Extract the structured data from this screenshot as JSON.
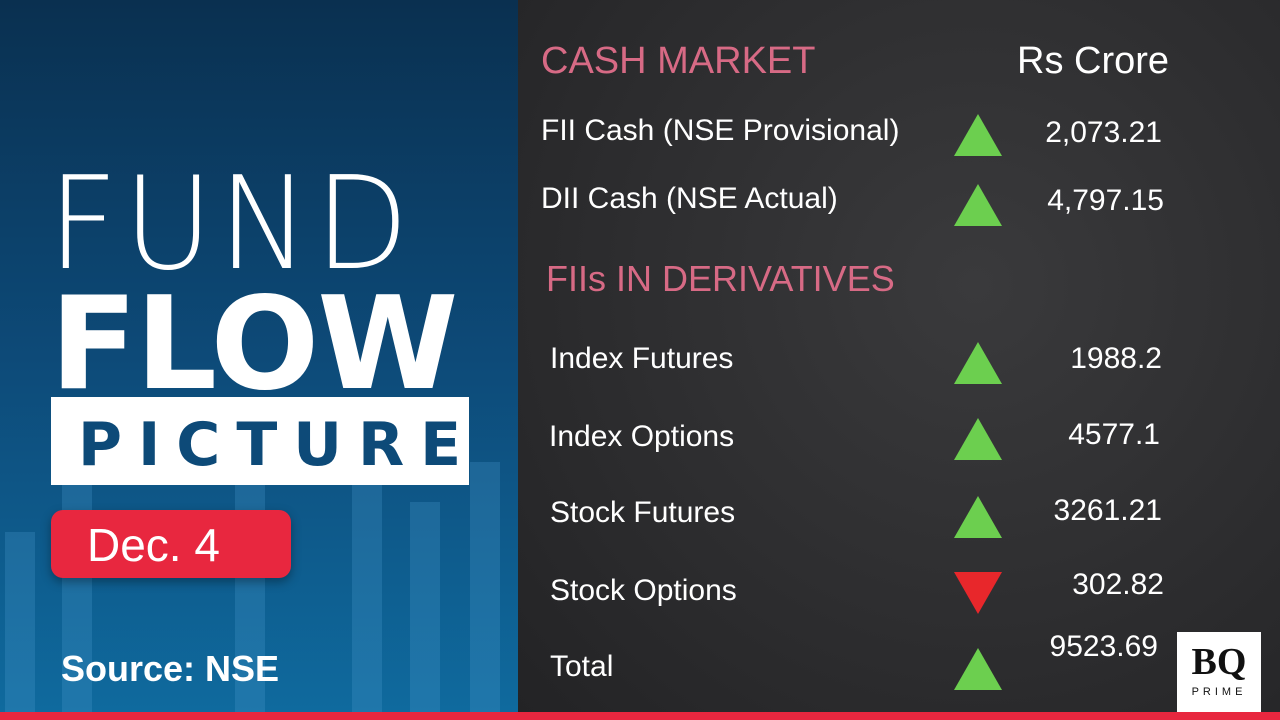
{
  "left": {
    "title_line1": "FUND",
    "title_line2": "FLOW",
    "title_line3": "PICTURE",
    "date": "Dec. 4",
    "source": "Source: NSE"
  },
  "cash_market": {
    "heading": "CASH MARKET",
    "unit": "Rs Crore",
    "rows": [
      {
        "label": "FII Cash (NSE Provisional)",
        "value": "2,073.21",
        "direction": "up"
      },
      {
        "label": "DII Cash (NSE Actual)",
        "value": "4,797.15",
        "direction": "up"
      }
    ]
  },
  "derivatives": {
    "heading": "FIIs IN DERIVATIVES",
    "rows": [
      {
        "label": "Index Futures",
        "value": "1988.2",
        "direction": "up"
      },
      {
        "label": "Index Options",
        "value": "4577.1",
        "direction": "up"
      },
      {
        "label": "Stock Futures",
        "value": "3261.21",
        "direction": "up"
      },
      {
        "label": "Stock Options",
        "value": "302.82",
        "direction": "down"
      },
      {
        "label": "Total",
        "value": "9523.69",
        "direction": "up"
      }
    ]
  },
  "logo": {
    "text": "BQ",
    "subtext": "PRIME"
  },
  "colors": {
    "up": "#6ccf4f",
    "down": "#e8272b",
    "accent": "#e8273f",
    "heading": "#d76a85",
    "panel": "#0d4a78"
  }
}
